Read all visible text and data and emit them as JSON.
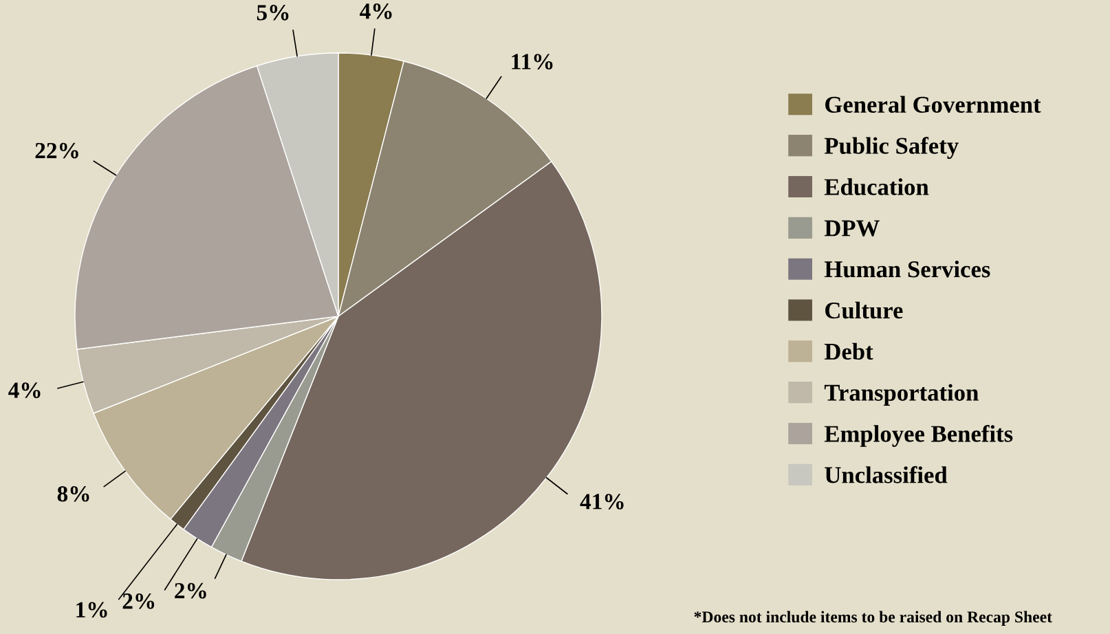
{
  "chart_data": {
    "type": "pie",
    "categories": [
      "General Government",
      "Public Safety",
      "Education",
      "DPW",
      "Human Services",
      "Culture",
      "Debt",
      "Transportation",
      "Employee Benefits",
      "Unclassified"
    ],
    "values": [
      4,
      11,
      41,
      2,
      2,
      1,
      8,
      4,
      22,
      5
    ],
    "value_labels": [
      "4%",
      "11%",
      "41%",
      "2%",
      "2%",
      "1%",
      "8%",
      "4%",
      "22%",
      "5%"
    ],
    "colors": [
      "#8b7d50",
      "#8c8470",
      "#75675e",
      "#9a9b90",
      "#7c7680",
      "#5f5440",
      "#bdb295",
      "#c0b8a8",
      "#aba39c",
      "#c8c8c0"
    ],
    "legend": "right",
    "annotations": [
      "*Does not include items to be raised on Recap Sheet"
    ]
  }
}
